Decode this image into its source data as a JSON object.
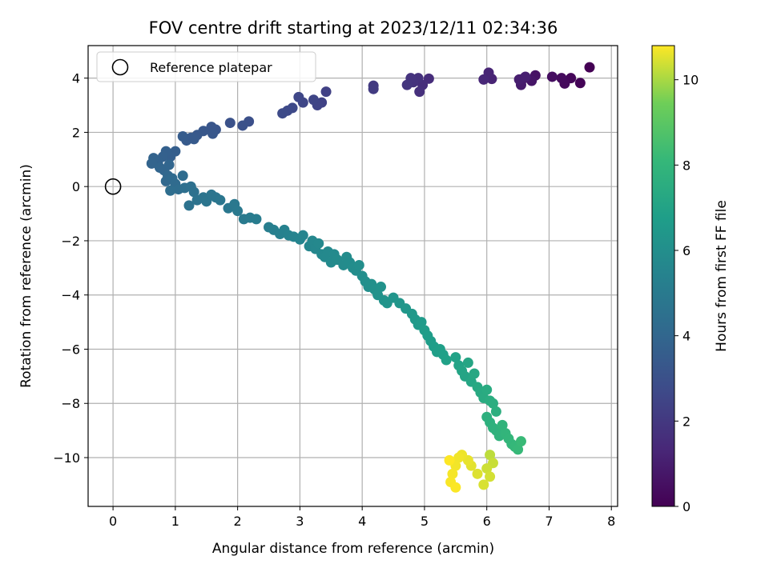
{
  "chart_data": {
    "type": "scatter",
    "title": "FOV centre drift starting at 2023/12/11 02:34:36",
    "xlabel": "Angular distance from reference (arcmin)",
    "ylabel": "Rotation from reference (arcmin)",
    "xlim": [
      -0.4,
      8.1
    ],
    "ylim": [
      -11.8,
      5.2
    ],
    "xticks": [
      0,
      1,
      2,
      3,
      4,
      5,
      6,
      7,
      8
    ],
    "yticks": [
      -10,
      -8,
      -6,
      -4,
      -2,
      0,
      2,
      4
    ],
    "grid": true,
    "legend": {
      "placement": "top-left",
      "label": "Reference platepar"
    },
    "reference_point": {
      "x": 0,
      "y": 0
    },
    "colorbar": {
      "label": "Hours from first FF file",
      "colormap": "viridis",
      "range": [
        0,
        10.8
      ],
      "ticks": [
        0,
        2,
        4,
        6,
        8,
        10
      ]
    },
    "points": [
      [
        7.65,
        4.4,
        0.0
      ],
      [
        7.5,
        3.82,
        0.1
      ],
      [
        7.35,
        4.0,
        0.2
      ],
      [
        7.25,
        3.8,
        0.3
      ],
      [
        7.2,
        4.0,
        0.35
      ],
      [
        7.05,
        4.05,
        0.45
      ],
      [
        6.78,
        4.1,
        0.6
      ],
      [
        6.72,
        3.9,
        0.7
      ],
      [
        6.6,
        4.0,
        0.8
      ],
      [
        6.55,
        3.75,
        0.9
      ],
      [
        6.52,
        3.95,
        1.0
      ],
      [
        6.62,
        4.05,
        1.05
      ],
      [
        6.08,
        3.97,
        1.2
      ],
      [
        6.03,
        4.2,
        1.25
      ],
      [
        5.95,
        3.95,
        1.3
      ],
      [
        5.07,
        3.98,
        1.55
      ],
      [
        4.97,
        3.75,
        1.6
      ],
      [
        4.92,
        3.5,
        1.65
      ],
      [
        4.9,
        4.0,
        1.7
      ],
      [
        4.82,
        3.85,
        1.75
      ],
      [
        4.78,
        4.0,
        1.8
      ],
      [
        4.72,
        3.75,
        1.85
      ],
      [
        4.18,
        3.72,
        2.05
      ],
      [
        4.18,
        3.6,
        2.1
      ],
      [
        3.42,
        3.5,
        2.35
      ],
      [
        3.35,
        3.1,
        2.4
      ],
      [
        3.28,
        3.0,
        2.45
      ],
      [
        3.22,
        3.2,
        2.5
      ],
      [
        3.05,
        3.1,
        2.55
      ],
      [
        2.98,
        3.3,
        2.6
      ],
      [
        2.88,
        2.9,
        2.65
      ],
      [
        2.8,
        2.8,
        2.7
      ],
      [
        2.72,
        2.7,
        2.75
      ],
      [
        2.18,
        2.4,
        2.95
      ],
      [
        2.08,
        2.25,
        3.0
      ],
      [
        1.88,
        2.35,
        3.05
      ],
      [
        1.65,
        2.1,
        3.2
      ],
      [
        1.58,
        2.2,
        3.25
      ],
      [
        1.45,
        2.05,
        3.3
      ],
      [
        1.35,
        1.9,
        3.35
      ],
      [
        1.25,
        1.8,
        3.4
      ],
      [
        1.18,
        1.7,
        3.45
      ],
      [
        1.12,
        1.85,
        3.5
      ],
      [
        1.3,
        1.75,
        3.42
      ],
      [
        1.6,
        1.95,
        3.28
      ],
      [
        1.0,
        1.3,
        3.6
      ],
      [
        0.92,
        1.1,
        3.65
      ],
      [
        0.85,
        1.3,
        3.7
      ],
      [
        0.8,
        1.1,
        3.75
      ],
      [
        0.72,
        0.9,
        3.8
      ],
      [
        0.65,
        1.05,
        3.82
      ],
      [
        0.62,
        0.85,
        3.85
      ],
      [
        0.75,
        0.7,
        3.9
      ],
      [
        0.82,
        0.6,
        3.95
      ],
      [
        0.9,
        0.8,
        3.98
      ],
      [
        0.88,
        0.4,
        4.05
      ],
      [
        0.85,
        0.2,
        4.1
      ],
      [
        0.95,
        0.3,
        4.15
      ],
      [
        1.0,
        0.1,
        4.2
      ],
      [
        1.12,
        0.4,
        4.25
      ],
      [
        1.05,
        -0.1,
        4.3
      ],
      [
        0.92,
        -0.15,
        4.35
      ],
      [
        1.15,
        -0.05,
        4.4
      ],
      [
        1.25,
        0.0,
        4.45
      ],
      [
        1.3,
        -0.2,
        4.5
      ],
      [
        1.22,
        -0.7,
        4.55
      ],
      [
        1.35,
        -0.5,
        4.6
      ],
      [
        1.45,
        -0.4,
        4.65
      ],
      [
        1.5,
        -0.55,
        4.7
      ],
      [
        1.58,
        -0.3,
        4.72
      ],
      [
        1.65,
        -0.4,
        4.75
      ],
      [
        1.72,
        -0.5,
        4.8
      ],
      [
        1.85,
        -0.8,
        4.85
      ],
      [
        1.95,
        -0.65,
        4.9
      ],
      [
        2.0,
        -0.9,
        4.92
      ],
      [
        2.1,
        -1.2,
        5.0
      ],
      [
        2.2,
        -1.15,
        5.05
      ],
      [
        2.3,
        -1.2,
        5.1
      ],
      [
        2.5,
        -1.5,
        5.2
      ],
      [
        2.58,
        -1.6,
        5.25
      ],
      [
        2.68,
        -1.75,
        5.3
      ],
      [
        2.75,
        -1.6,
        5.35
      ],
      [
        2.82,
        -1.8,
        5.4
      ],
      [
        2.9,
        -1.85,
        5.45
      ],
      [
        3.0,
        -1.95,
        5.5
      ],
      [
        3.05,
        -1.8,
        5.52
      ],
      [
        3.15,
        -2.2,
        5.6
      ],
      [
        3.2,
        -2.0,
        5.62
      ],
      [
        3.25,
        -2.3,
        5.65
      ],
      [
        3.3,
        -2.1,
        5.68
      ],
      [
        3.35,
        -2.5,
        5.7
      ],
      [
        3.4,
        -2.6,
        5.72
      ],
      [
        3.45,
        -2.4,
        5.75
      ],
      [
        3.5,
        -2.8,
        5.78
      ],
      [
        3.55,
        -2.5,
        5.8
      ],
      [
        3.6,
        -2.7,
        5.82
      ],
      [
        3.7,
        -2.9,
        5.85
      ],
      [
        3.75,
        -2.6,
        5.88
      ],
      [
        3.8,
        -2.8,
        5.9
      ],
      [
        3.85,
        -3.0,
        5.92
      ],
      [
        3.9,
        -3.1,
        5.95
      ],
      [
        3.95,
        -2.9,
        5.97
      ],
      [
        4.0,
        -3.3,
        6.0
      ],
      [
        4.05,
        -3.5,
        6.02
      ],
      [
        4.1,
        -3.7,
        6.05
      ],
      [
        4.15,
        -3.6,
        6.08
      ],
      [
        4.2,
        -3.8,
        6.1
      ],
      [
        4.25,
        -4.0,
        6.15
      ],
      [
        4.3,
        -3.7,
        6.18
      ],
      [
        4.35,
        -4.2,
        6.2
      ],
      [
        4.4,
        -4.3,
        6.25
      ],
      [
        4.5,
        -4.1,
        6.3
      ],
      [
        4.6,
        -4.3,
        6.35
      ],
      [
        4.7,
        -4.5,
        6.4
      ],
      [
        4.8,
        -4.7,
        6.45
      ],
      [
        4.85,
        -4.9,
        6.5
      ],
      [
        4.9,
        -5.1,
        6.55
      ],
      [
        4.95,
        -5.0,
        6.6
      ],
      [
        5.0,
        -5.3,
        6.65
      ],
      [
        5.05,
        -5.5,
        6.7
      ],
      [
        5.1,
        -5.7,
        6.72
      ],
      [
        5.15,
        -5.9,
        6.75
      ],
      [
        5.2,
        -6.1,
        6.8
      ],
      [
        5.25,
        -6.0,
        6.82
      ],
      [
        5.3,
        -6.2,
        6.85
      ],
      [
        5.35,
        -6.4,
        6.9
      ],
      [
        5.5,
        -6.3,
        6.95
      ],
      [
        5.55,
        -6.6,
        7.0
      ],
      [
        5.6,
        -6.8,
        7.05
      ],
      [
        5.65,
        -7.0,
        7.1
      ],
      [
        5.7,
        -6.5,
        7.15
      ],
      [
        5.75,
        -7.2,
        7.2
      ],
      [
        5.8,
        -6.9,
        7.25
      ],
      [
        5.85,
        -7.4,
        7.3
      ],
      [
        5.9,
        -7.6,
        7.35
      ],
      [
        5.95,
        -7.8,
        7.4
      ],
      [
        6.0,
        -7.5,
        7.45
      ],
      [
        6.05,
        -7.9,
        7.5
      ],
      [
        6.1,
        -8.0,
        7.55
      ],
      [
        6.15,
        -8.3,
        7.6
      ],
      [
        6.0,
        -8.5,
        7.65
      ],
      [
        6.05,
        -8.7,
        7.7
      ],
      [
        6.1,
        -8.9,
        7.75
      ],
      [
        6.15,
        -9.0,
        7.8
      ],
      [
        6.2,
        -9.2,
        7.85
      ],
      [
        6.25,
        -8.8,
        7.9
      ],
      [
        6.3,
        -9.1,
        7.95
      ],
      [
        6.35,
        -9.3,
        8.0
      ],
      [
        6.4,
        -9.5,
        8.05
      ],
      [
        6.45,
        -9.6,
        8.1
      ],
      [
        6.5,
        -9.7,
        8.15
      ],
      [
        6.55,
        -9.4,
        8.2
      ],
      [
        6.05,
        -9.9,
        10.2
      ],
      [
        6.1,
        -10.2,
        10.3
      ],
      [
        6.0,
        -10.4,
        10.35
      ],
      [
        6.05,
        -10.7,
        10.4
      ],
      [
        5.95,
        -11.0,
        10.45
      ],
      [
        5.85,
        -10.6,
        10.5
      ],
      [
        5.75,
        -10.3,
        10.55
      ],
      [
        5.7,
        -10.1,
        10.6
      ],
      [
        5.6,
        -9.9,
        10.65
      ],
      [
        5.55,
        -10.0,
        10.68
      ],
      [
        5.5,
        -10.3,
        10.7
      ],
      [
        5.45,
        -10.6,
        10.72
      ],
      [
        5.42,
        -10.9,
        10.75
      ],
      [
        5.5,
        -11.1,
        10.78
      ],
      [
        5.4,
        -10.1,
        10.8
      ]
    ]
  }
}
